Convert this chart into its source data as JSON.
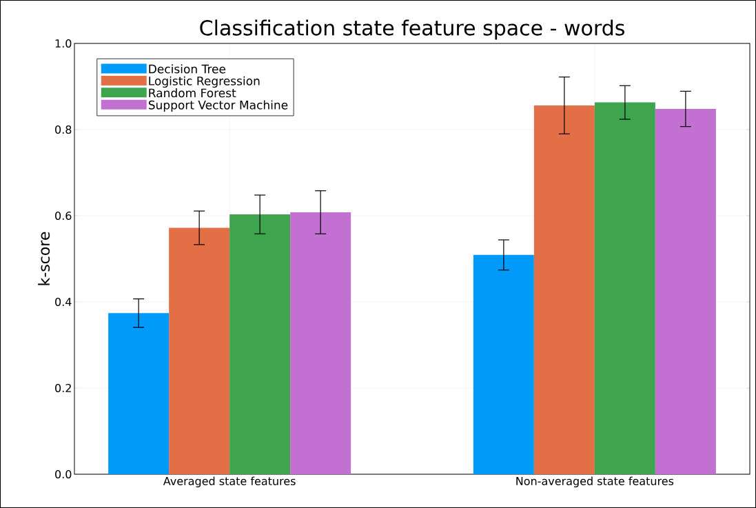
{
  "chart_data": {
    "type": "bar",
    "title": "Classification state feature space - words",
    "ylabel": "k-score",
    "categories": [
      "Averaged state features",
      "Non-averaged state features"
    ],
    "series": [
      {
        "name": "Decision Tree",
        "color": "#009afa",
        "values": [
          0.374,
          0.509
        ],
        "errors": [
          0.033,
          0.035
        ]
      },
      {
        "name": "Logistic Regression",
        "color": "#e26f46",
        "values": [
          0.572,
          0.856
        ],
        "errors": [
          0.039,
          0.066
        ]
      },
      {
        "name": "Random Forest",
        "color": "#3ea44e",
        "values": [
          0.603,
          0.863
        ],
        "errors": [
          0.045,
          0.039
        ]
      },
      {
        "name": "Support Vector Machine",
        "color": "#c270d2",
        "values": [
          0.608,
          0.848
        ],
        "errors": [
          0.05,
          0.041
        ]
      }
    ],
    "ylim": [
      0,
      1
    ],
    "yticks": [
      {
        "value": 0,
        "label": "0.0"
      },
      0.2,
      0.4,
      0.6,
      0.8,
      {
        "value": 1,
        "label": "1.0"
      }
    ],
    "grid": true,
    "legend": "top left"
  }
}
